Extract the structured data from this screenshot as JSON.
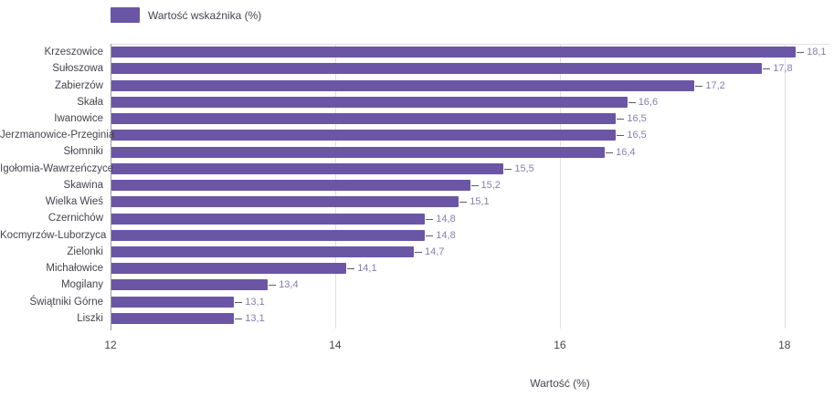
{
  "legend": {
    "label": "Wartość wskaźnika (%)"
  },
  "colors": {
    "bar": "#6a56a5",
    "value_label": "#867daf",
    "text": "#45454e",
    "grid": "#e0e0e0",
    "axis_line": "#9b9b9b",
    "connector": "#5c5c66"
  },
  "chart_data": {
    "type": "bar",
    "orientation": "horizontal",
    "title": "",
    "xlabel": "Wartość (%)",
    "ylabel": "",
    "legend_position": "top-left",
    "grid": "vertical-only",
    "series": [
      {
        "name": "Wartość wskaźnika (%)",
        "values": [
          18.1,
          17.8,
          17.2,
          16.6,
          16.5,
          16.5,
          16.4,
          15.5,
          15.2,
          15.1,
          14.8,
          14.8,
          14.7,
          14.1,
          13.4,
          13.1,
          13.1
        ]
      }
    ],
    "categories": [
      "Krzeszowice",
      "Sułoszowa",
      "Zabierzów",
      "Skała",
      "Iwanowice",
      "Jerzmanowice-Przeginia",
      "Słomniki",
      "Igołomia-Wawrzeńczyce",
      "Skawina",
      "Wielka Wieś",
      "Czernichów",
      "Kocmyrzów-Luborzyca",
      "Zielonki",
      "Michałowice",
      "Mogilany",
      "Świątniki Górne",
      "Liszki"
    ],
    "value_labels": [
      "18,1",
      "17,8",
      "17,2",
      "16,6",
      "16,5",
      "16,5",
      "16,4",
      "15,5",
      "15,2",
      "15,1",
      "14,8",
      "14,8",
      "14,7",
      "14,1",
      "13,4",
      "13,1",
      "13,1"
    ],
    "x_ticks": [
      12,
      14,
      16,
      18
    ],
    "x_tick_labels": [
      "12",
      "14",
      "16",
      "18"
    ],
    "xlim": [
      12,
      18.4
    ]
  }
}
